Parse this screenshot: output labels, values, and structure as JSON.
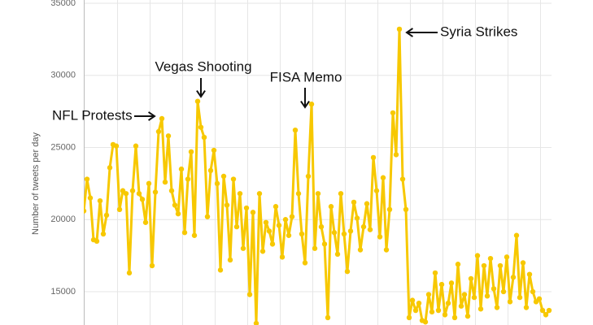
{
  "chart_data": {
    "type": "line",
    "y_axis_label": "Number of tweets per day",
    "color": "#f7c800",
    "grid": true,
    "ylim": [
      12700,
      35000
    ],
    "yticks": [
      15000,
      20000,
      25000,
      30000,
      35000
    ],
    "values": [
      20600,
      22800,
      21500,
      18600,
      18500,
      21300,
      19000,
      20300,
      23600,
      25200,
      25100,
      20700,
      22000,
      21800,
      16300,
      22000,
      25100,
      21800,
      21400,
      19800,
      22500,
      16800,
      21900,
      26100,
      27000,
      22600,
      25800,
      22000,
      21000,
      20400,
      23500,
      19100,
      22800,
      24700,
      18900,
      28200,
      26400,
      25700,
      20200,
      23400,
      24800,
      22500,
      16500,
      23000,
      21000,
      17200,
      22800,
      19500,
      21800,
      18000,
      20800,
      14800,
      20500,
      12800,
      21800,
      17800,
      19800,
      19200,
      18300,
      20900,
      19600,
      17400,
      20000,
      18900,
      20200,
      26200,
      21800,
      19000,
      17000,
      23000,
      28000,
      18000,
      21800,
      19500,
      18300,
      13200,
      20900,
      19100,
      17600,
      21800,
      19000,
      16400,
      19200,
      21200,
      20100,
      17900,
      19500,
      21100,
      19300,
      24300,
      22000,
      18800,
      22900,
      17900,
      20700,
      27400,
      24500,
      33200,
      22800,
      20700,
      13200,
      14400,
      13700,
      14200,
      13000,
      12900,
      14800,
      13600,
      16300,
      13700,
      15500,
      13400,
      14200,
      15600,
      13200,
      16900,
      14000,
      14800,
      13300,
      15900,
      14600,
      17500,
      13800,
      16800,
      14700,
      17300,
      15200,
      13900,
      16800,
      15000,
      17400,
      14300,
      16000,
      18900,
      14600,
      17000,
      13900,
      16200,
      15000,
      14300,
      14500,
      13700,
      13400,
      13700
    ],
    "annotations": [
      "NFL Protests",
      "Vegas Shooting",
      "FISA Memo",
      "Syria Strikes"
    ]
  }
}
